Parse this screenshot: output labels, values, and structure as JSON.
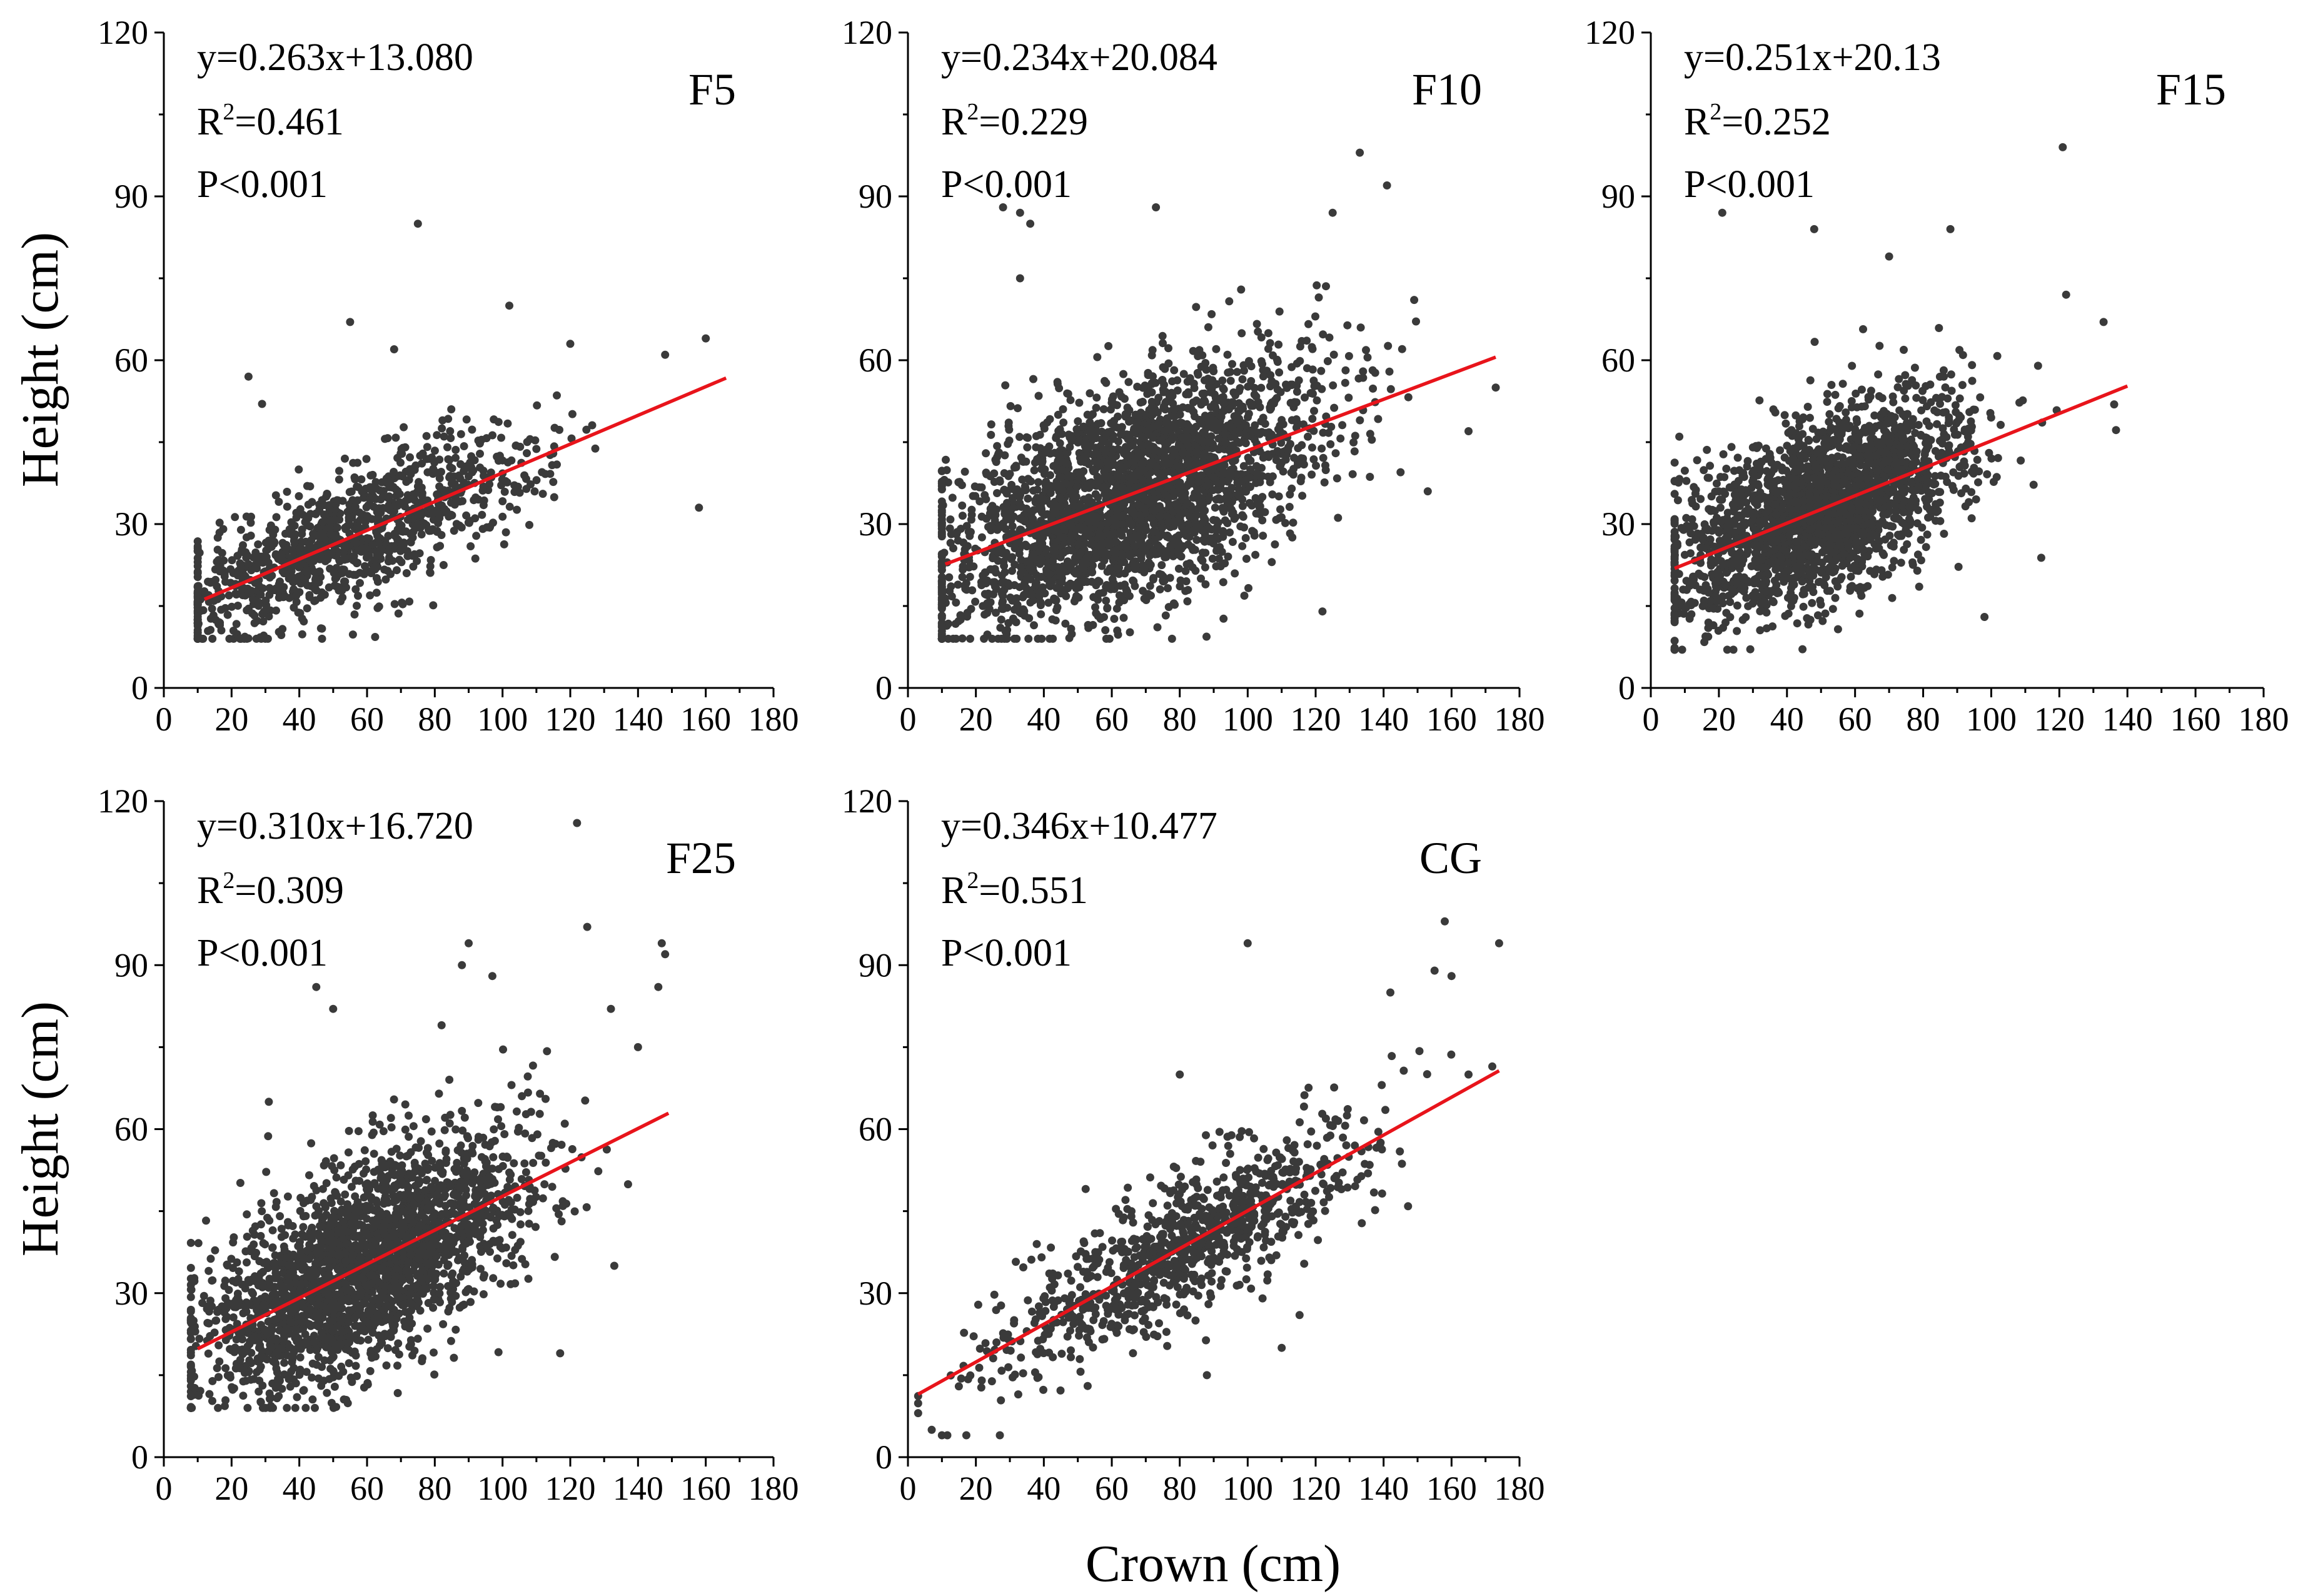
{
  "figure": {
    "xlabel": "Crown (cm)",
    "ylabel": "Height (cm)"
  },
  "colors": {
    "points": "#3a3a3a",
    "fit_line": "#e8141b",
    "axis": "#000000"
  },
  "chart_data": [
    {
      "type": "scatter",
      "label": "F5",
      "equation": "y=0.263x+13.080",
      "r2_value": "=0.461",
      "p_text": "P<0.001",
      "xlabel": "Crown (cm)",
      "ylabel": "Height (cm)",
      "xlim": [
        0,
        180
      ],
      "ylim": [
        0,
        120
      ],
      "xticks": [
        0,
        20,
        40,
        60,
        80,
        100,
        120,
        140,
        160,
        180
      ],
      "yticks": [
        0,
        30,
        60,
        90,
        120
      ],
      "fit": {
        "slope": 0.263,
        "intercept": 13.08,
        "x_range": [
          12,
          166
        ]
      },
      "cloud": {
        "n": 1100,
        "x_center": 55,
        "x_sd": 28,
        "x_range": [
          10,
          165
        ],
        "y_sd": 6.0,
        "y_range": [
          9,
          70
        ]
      },
      "outliers": [
        [
          75,
          85
        ],
        [
          102,
          70
        ],
        [
          55,
          67
        ],
        [
          68,
          62
        ],
        [
          25,
          57
        ],
        [
          29,
          52
        ],
        [
          148,
          61
        ],
        [
          158,
          33
        ],
        [
          160,
          64
        ],
        [
          120,
          63
        ]
      ]
    },
    {
      "type": "scatter",
      "label": "F10",
      "equation": "y=0.234x+20.084",
      "r2_value": "=0.229",
      "p_text": "P<0.001",
      "xlabel": "Crown (cm)",
      "ylabel": "Height (cm)",
      "xlim": [
        0,
        180
      ],
      "ylim": [
        0,
        120
      ],
      "xticks": [
        0,
        20,
        40,
        60,
        80,
        100,
        120,
        140,
        160,
        180
      ],
      "yticks": [
        0,
        30,
        60,
        90,
        120
      ],
      "fit": {
        "slope": 0.234,
        "intercept": 20.084,
        "x_range": [
          11,
          173
        ]
      },
      "cloud": {
        "n": 2800,
        "x_center": 65,
        "x_sd": 27,
        "x_range": [
          10,
          172
        ],
        "y_sd": 10.0,
        "y_range": [
          9,
          82
        ]
      },
      "outliers": [
        [
          28,
          88
        ],
        [
          33,
          87
        ],
        [
          36,
          85
        ],
        [
          33,
          75
        ],
        [
          73,
          88
        ],
        [
          133,
          98
        ],
        [
          141,
          92
        ],
        [
          125,
          87
        ],
        [
          173,
          55
        ],
        [
          165,
          47
        ],
        [
          153,
          36
        ],
        [
          122,
          14
        ]
      ]
    },
    {
      "type": "scatter",
      "label": "F15",
      "equation": "y=0.251x+20.13",
      "r2_value": "=0.252",
      "p_text": "P<0.001",
      "xlabel": "Crown (cm)",
      "ylabel": "Height (cm)",
      "xlim": [
        0,
        180
      ],
      "ylim": [
        0,
        120
      ],
      "xticks": [
        0,
        20,
        40,
        60,
        80,
        100,
        120,
        140,
        160,
        180
      ],
      "yticks": [
        0,
        30,
        60,
        90,
        120
      ],
      "fit": {
        "slope": 0.251,
        "intercept": 20.13,
        "x_range": [
          7,
          140
        ]
      },
      "cloud": {
        "n": 2300,
        "x_center": 50,
        "x_sd": 22,
        "x_range": [
          7,
          140
        ],
        "y_sd": 8.0,
        "y_range": [
          7,
          70
        ]
      },
      "outliers": [
        [
          21,
          87
        ],
        [
          48,
          84
        ],
        [
          121,
          99
        ],
        [
          88,
          84
        ],
        [
          70,
          79
        ],
        [
          122,
          72
        ],
        [
          98,
          13
        ],
        [
          133,
          67
        ]
      ]
    },
    {
      "type": "scatter",
      "label": "F25",
      "equation": "y=0.310x+16.720",
      "r2_value": "=0.309",
      "p_text": "P<0.001",
      "xlabel": "Crown (cm)",
      "ylabel": "Height (cm)",
      "xlim": [
        0,
        180
      ],
      "ylim": [
        0,
        120
      ],
      "xticks": [
        0,
        20,
        40,
        60,
        80,
        100,
        120,
        140,
        160,
        180
      ],
      "yticks": [
        0,
        30,
        60,
        90,
        120
      ],
      "fit": {
        "slope": 0.31,
        "intercept": 16.72,
        "x_range": [
          10,
          149
        ]
      },
      "cloud": {
        "n": 2500,
        "x_center": 58,
        "x_sd": 24,
        "x_range": [
          8,
          148
        ],
        "y_sd": 9.0,
        "y_range": [
          9,
          80
        ]
      },
      "outliers": [
        [
          122,
          116
        ],
        [
          125,
          97
        ],
        [
          90,
          94
        ],
        [
          97,
          88
        ],
        [
          88,
          90
        ],
        [
          45,
          86
        ],
        [
          50,
          82
        ],
        [
          147,
          94
        ],
        [
          146,
          86
        ],
        [
          148,
          92
        ],
        [
          132,
          82
        ],
        [
          140,
          75
        ],
        [
          31,
          65
        ],
        [
          117,
          19
        ],
        [
          133,
          35
        ],
        [
          82,
          79
        ]
      ]
    },
    {
      "type": "scatter",
      "label": "CG",
      "equation": "y=0.346x+10.477",
      "r2_value": "=0.551",
      "p_text": "P<0.001",
      "xlabel": "Crown (cm)",
      "ylabel": "Height (cm)",
      "xlim": [
        0,
        180
      ],
      "ylim": [
        0,
        120
      ],
      "xticks": [
        0,
        20,
        40,
        60,
        80,
        100,
        120,
        140,
        160,
        180
      ],
      "yticks": [
        0,
        30,
        60,
        90,
        120
      ],
      "fit": {
        "slope": 0.346,
        "intercept": 10.477,
        "x_range": [
          3,
          174
        ]
      },
      "cloud": {
        "n": 950,
        "x_center": 82,
        "x_sd": 28,
        "x_range": [
          3,
          172
        ],
        "y_sd": 6.5,
        "y_range": [
          4,
          82
        ]
      },
      "outliers": [
        [
          100,
          94
        ],
        [
          158,
          98
        ],
        [
          174,
          94
        ],
        [
          155,
          89
        ],
        [
          160,
          88
        ],
        [
          142,
          85
        ],
        [
          165,
          70
        ],
        [
          110,
          20
        ],
        [
          88,
          15
        ],
        [
          7,
          5
        ],
        [
          10,
          4
        ],
        [
          80,
          70
        ]
      ]
    }
  ]
}
